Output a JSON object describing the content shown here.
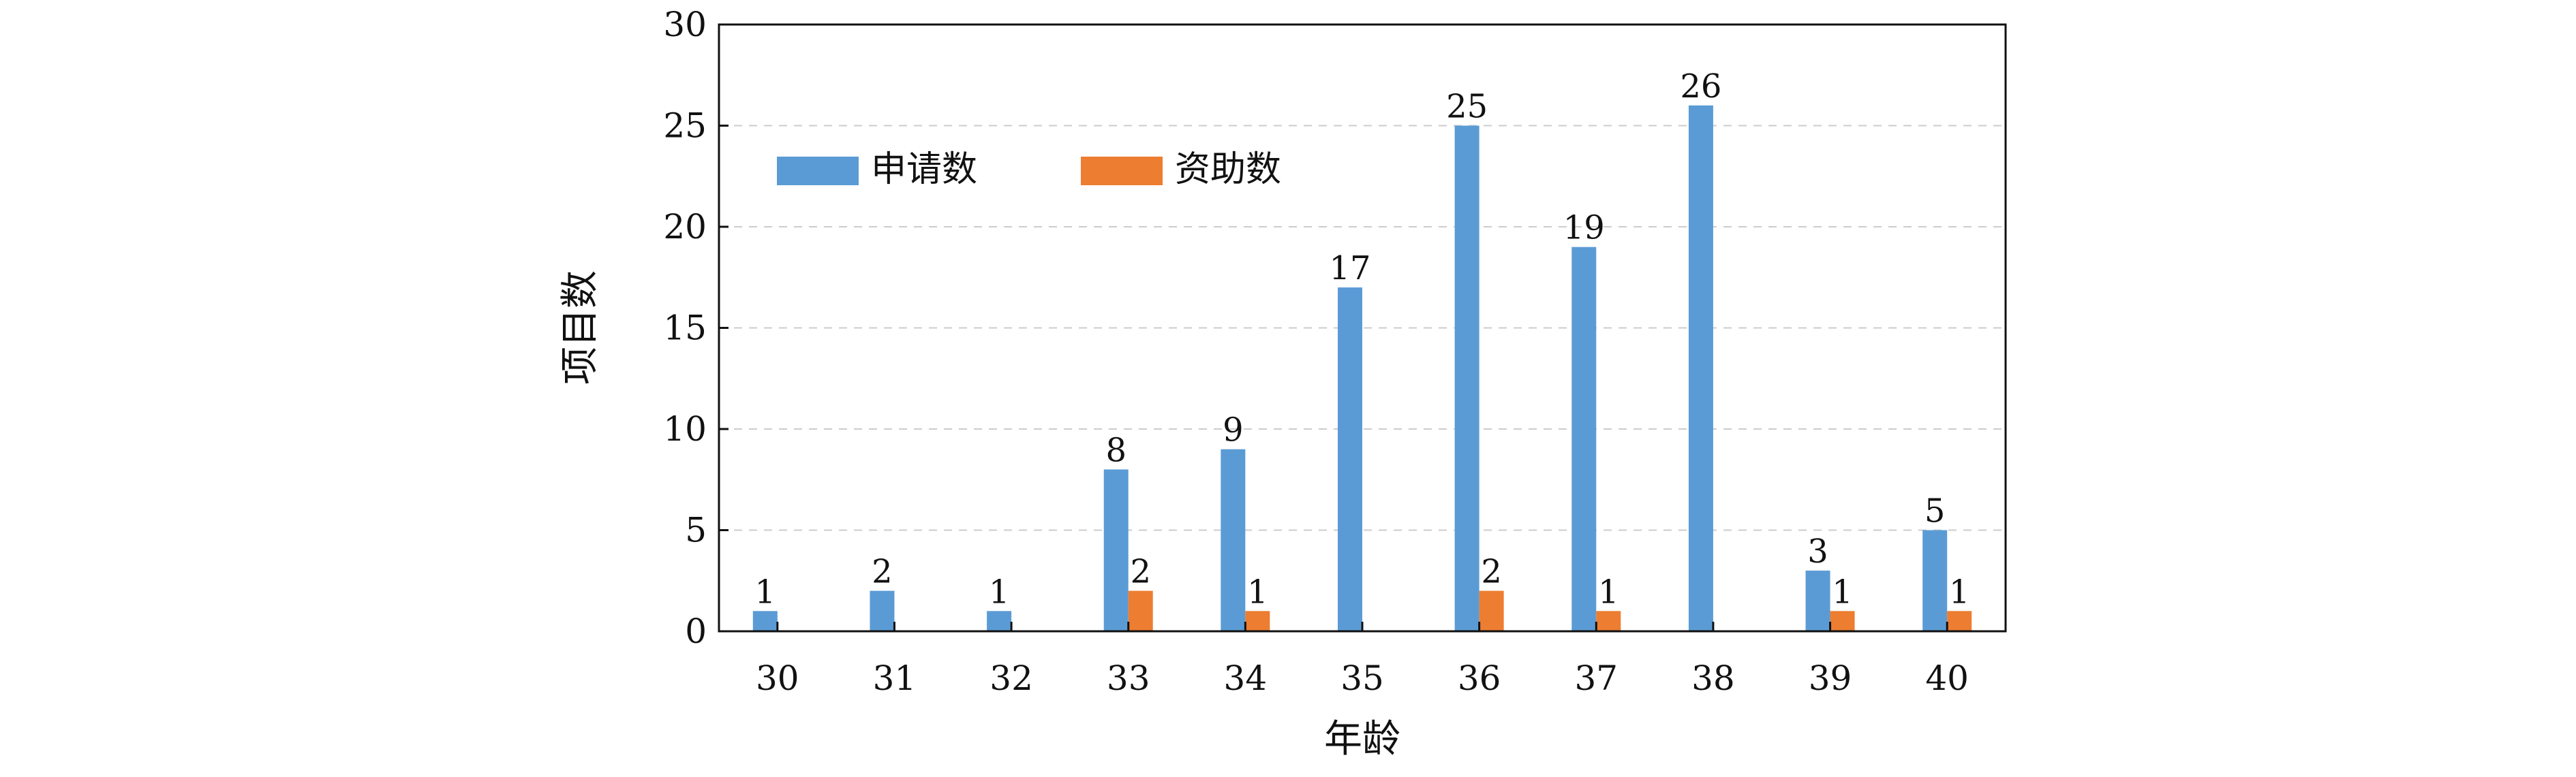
{
  "chart_data": {
    "type": "bar",
    "title": "",
    "xlabel": "年龄",
    "ylabel": "项目数",
    "categories": [
      "30",
      "31",
      "32",
      "33",
      "34",
      "35",
      "36",
      "37",
      "38",
      "39",
      "40"
    ],
    "series": [
      {
        "name": "申请数",
        "values": [
          1,
          2,
          1,
          8,
          9,
          17,
          25,
          19,
          26,
          3,
          5
        ],
        "labels": [
          "1",
          "2",
          "1",
          "8",
          "9",
          "17",
          "25",
          "19",
          "26",
          "3",
          "5"
        ],
        "color": "#5B9BD5"
      },
      {
        "name": "资助数",
        "values": [
          0,
          0,
          0,
          2,
          1,
          0,
          2,
          1,
          0,
          1,
          1
        ],
        "labels": [
          "",
          "",
          "",
          "2",
          "1",
          "",
          "2",
          "1",
          "",
          "1",
          "1"
        ],
        "color": "#ED7D31"
      }
    ],
    "ylim": [
      0,
      30
    ],
    "yticks": [
      "0",
      "5",
      "10",
      "15",
      "20",
      "25",
      "30"
    ],
    "grid": "horizontal-dashed",
    "legend": "top-left"
  }
}
